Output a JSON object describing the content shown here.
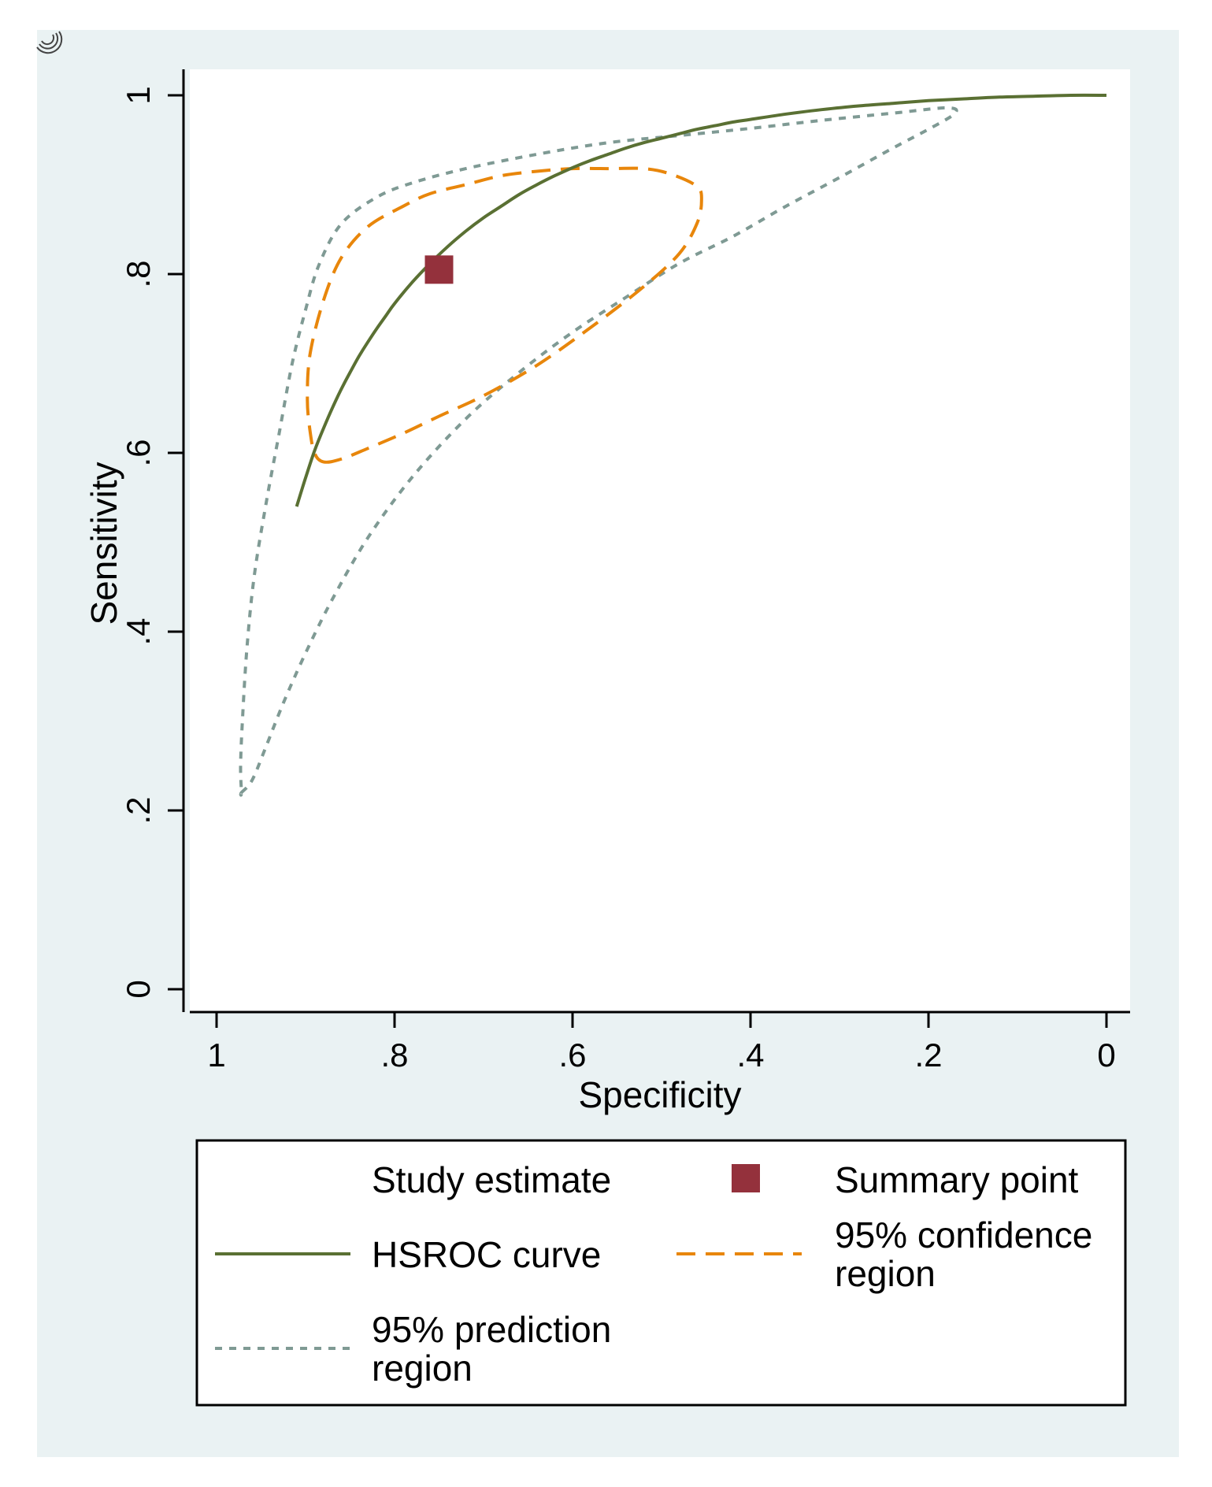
{
  "chart_data": {
    "type": "line",
    "title": "",
    "xlabel": "Specificity",
    "ylabel": "Sensitivity",
    "x_reversed": true,
    "xlim": [
      1,
      0
    ],
    "ylim": [
      0,
      1
    ],
    "x_ticks": [
      {
        "value": 1,
        "label": "1"
      },
      {
        "value": 0.8,
        "label": ".8"
      },
      {
        "value": 0.6,
        "label": ".6"
      },
      {
        "value": 0.4,
        "label": ".4"
      },
      {
        "value": 0.2,
        "label": ".2"
      },
      {
        "value": 0,
        "label": "0"
      }
    ],
    "y_ticks": [
      {
        "value": 0,
        "label": "0"
      },
      {
        "value": 0.2,
        "label": ".2"
      },
      {
        "value": 0.4,
        "label": ".4"
      },
      {
        "value": 0.6,
        "label": ".6"
      },
      {
        "value": 0.8,
        "label": ".8"
      },
      {
        "value": 1,
        "label": "1"
      }
    ],
    "grid": false,
    "legend_placement": "bottom",
    "colors": {
      "outer_background": "#eaf2f3",
      "plot_background": "#ffffff",
      "hsroc": "#5a7033",
      "confidence": "#e8860b",
      "prediction": "#7f9a94",
      "summary": "#94313c"
    },
    "series": [
      {
        "name": "HSROC curve",
        "style": "solid",
        "points": [
          [
            0.91,
            0.54
          ],
          [
            0.9,
            0.572
          ],
          [
            0.89,
            0.602
          ],
          [
            0.88,
            0.627
          ],
          [
            0.87,
            0.65
          ],
          [
            0.86,
            0.671
          ],
          [
            0.85,
            0.69
          ],
          [
            0.84,
            0.708
          ],
          [
            0.83,
            0.724
          ],
          [
            0.82,
            0.739
          ],
          [
            0.81,
            0.753
          ],
          [
            0.8,
            0.767
          ],
          [
            0.78,
            0.791
          ],
          [
            0.76,
            0.812
          ],
          [
            0.74,
            0.831
          ],
          [
            0.72,
            0.848
          ],
          [
            0.7,
            0.863
          ],
          [
            0.68,
            0.876
          ],
          [
            0.66,
            0.889
          ],
          [
            0.64,
            0.9
          ],
          [
            0.62,
            0.91
          ],
          [
            0.6,
            0.919
          ],
          [
            0.58,
            0.927
          ],
          [
            0.56,
            0.934
          ],
          [
            0.54,
            0.941
          ],
          [
            0.52,
            0.947
          ],
          [
            0.5,
            0.952
          ],
          [
            0.48,
            0.957
          ],
          [
            0.46,
            0.962
          ],
          [
            0.44,
            0.966
          ],
          [
            0.42,
            0.97
          ],
          [
            0.4,
            0.973
          ],
          [
            0.36,
            0.979
          ],
          [
            0.32,
            0.984
          ],
          [
            0.28,
            0.988
          ],
          [
            0.24,
            0.991
          ],
          [
            0.2,
            0.994
          ],
          [
            0.16,
            0.996
          ],
          [
            0.12,
            0.998
          ],
          [
            0.08,
            0.999
          ],
          [
            0.04,
            1.0
          ],
          [
            0.0,
            1.0
          ]
        ]
      },
      {
        "name": "95% confidence region",
        "style": "dashed",
        "closed": true,
        "points": [
          [
            0.88,
            0.59
          ],
          [
            0.86,
            0.593
          ],
          [
            0.83,
            0.605
          ],
          [
            0.79,
            0.622
          ],
          [
            0.75,
            0.641
          ],
          [
            0.7,
            0.664
          ],
          [
            0.64,
            0.698
          ],
          [
            0.58,
            0.74
          ],
          [
            0.52,
            0.786
          ],
          [
            0.48,
            0.823
          ],
          [
            0.46,
            0.857
          ],
          [
            0.455,
            0.882
          ],
          [
            0.46,
            0.898
          ],
          [
            0.49,
            0.912
          ],
          [
            0.52,
            0.918
          ],
          [
            0.56,
            0.918
          ],
          [
            0.6,
            0.918
          ],
          [
            0.64,
            0.915
          ],
          [
            0.68,
            0.91
          ],
          [
            0.72,
            0.9
          ],
          [
            0.76,
            0.89
          ],
          [
            0.79,
            0.876
          ],
          [
            0.83,
            0.853
          ],
          [
            0.86,
            0.818
          ],
          [
            0.88,
            0.77
          ],
          [
            0.895,
            0.71
          ],
          [
            0.898,
            0.66
          ],
          [
            0.895,
            0.625
          ],
          [
            0.89,
            0.6
          ]
        ]
      },
      {
        "name": "95% prediction region",
        "style": "dotted",
        "closed": true,
        "points": [
          [
            0.972,
            0.22
          ],
          [
            0.96,
            0.234
          ],
          [
            0.945,
            0.27
          ],
          [
            0.925,
            0.32
          ],
          [
            0.9,
            0.376
          ],
          [
            0.87,
            0.436
          ],
          [
            0.83,
            0.505
          ],
          [
            0.78,
            0.573
          ],
          [
            0.72,
            0.638
          ],
          [
            0.66,
            0.69
          ],
          [
            0.6,
            0.735
          ],
          [
            0.54,
            0.774
          ],
          [
            0.48,
            0.812
          ],
          [
            0.42,
            0.842
          ],
          [
            0.36,
            0.876
          ],
          [
            0.3,
            0.908
          ],
          [
            0.24,
            0.941
          ],
          [
            0.2,
            0.962
          ],
          [
            0.17,
            0.98
          ],
          [
            0.18,
            0.986
          ],
          [
            0.24,
            0.98
          ],
          [
            0.32,
            0.972
          ],
          [
            0.4,
            0.963
          ],
          [
            0.48,
            0.955
          ],
          [
            0.56,
            0.947
          ],
          [
            0.64,
            0.934
          ],
          [
            0.72,
            0.918
          ],
          [
            0.78,
            0.902
          ],
          [
            0.82,
            0.886
          ],
          [
            0.86,
            0.856
          ],
          [
            0.885,
            0.81
          ],
          [
            0.9,
            0.76
          ],
          [
            0.915,
            0.7
          ],
          [
            0.93,
            0.62
          ],
          [
            0.945,
            0.54
          ],
          [
            0.958,
            0.46
          ],
          [
            0.966,
            0.38
          ],
          [
            0.971,
            0.3
          ],
          [
            0.973,
            0.25
          ],
          [
            0.972,
            0.22
          ]
        ]
      }
    ],
    "summary_point": {
      "name": "Summary point",
      "x": 0.75,
      "y": 0.805
    },
    "study_estimates": [],
    "legend": [
      {
        "key": "study",
        "label": "Study estimate"
      },
      {
        "key": "summary",
        "label": "Summary point"
      },
      {
        "key": "hsroc",
        "label": "HSROC curve"
      },
      {
        "key": "confidence",
        "lines": [
          "95% confidence",
          "region"
        ]
      },
      {
        "key": "prediction",
        "lines": [
          "95% prediction",
          "region"
        ]
      }
    ]
  }
}
